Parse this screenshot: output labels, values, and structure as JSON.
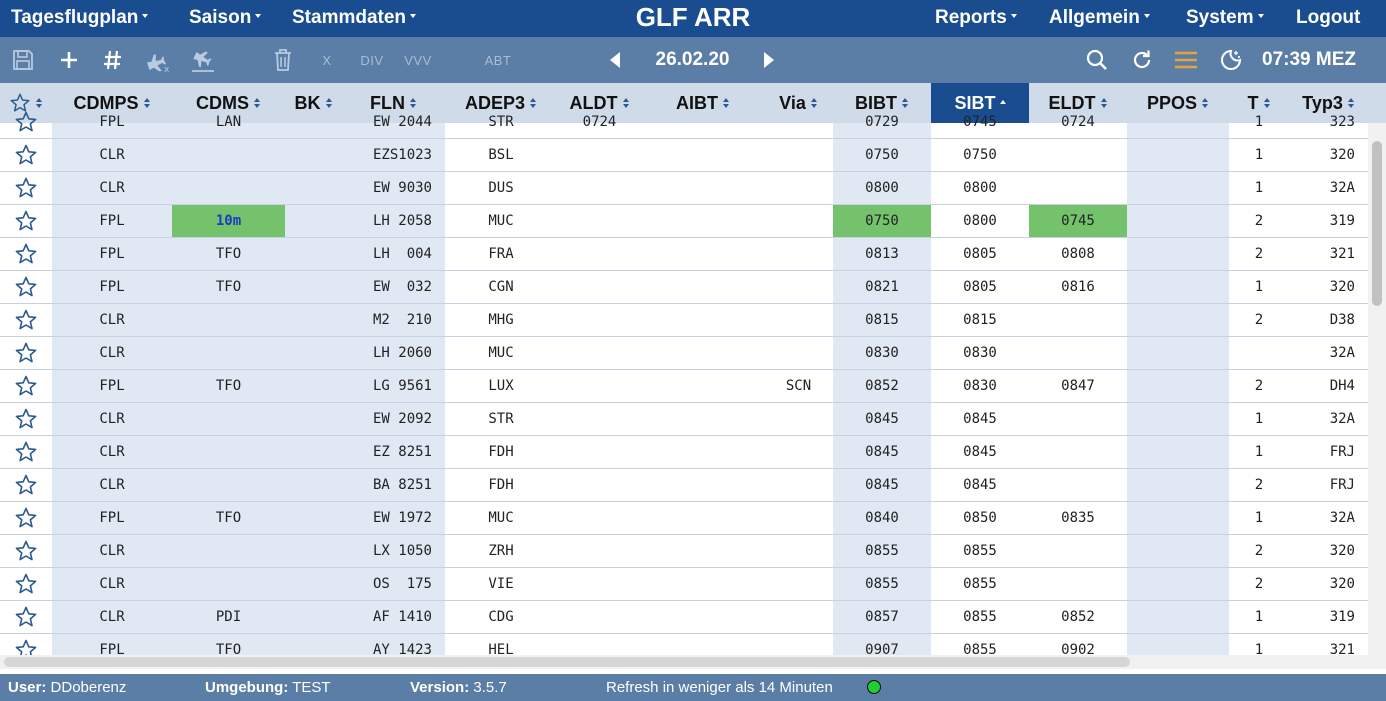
{
  "nav": {
    "left": [
      "Tagesflugplan",
      "Saison",
      "Stammdaten"
    ],
    "title": "GLF ARR",
    "right": [
      "Reports",
      "Allgemein",
      "System"
    ],
    "logout": "Logout"
  },
  "toolbar": {
    "save_icon": "save-icon",
    "add_icon": "plus-icon",
    "hash_icon": "hash-icon",
    "cancel_arrival_icon": "plane-cancel-icon",
    "arrival_icon": "plane-landing-icon",
    "delete_icon": "trash-icon",
    "x_label": "X",
    "div_label": "DIV",
    "vvv_label": "VVV",
    "abt_label": "ABT",
    "date": "26.02.20",
    "time": "07:39 MEZ",
    "accent": "#e6a23c"
  },
  "columns": [
    "CDMPS",
    "CDMS",
    "BK",
    "FLN",
    "ADEP3",
    "ALDT",
    "AIBT",
    "Via",
    "BIBT",
    "SIBT",
    "ELDT",
    "PPOS",
    "T",
    "Typ3"
  ],
  "active_sort_column": "SIBT",
  "rows": [
    {
      "cdmps": "FPL",
      "cdms": "LAN",
      "bk": "",
      "fln": "EW 2044",
      "adep3": "STR",
      "aldt": "0724",
      "aibt": "",
      "via": "",
      "bibt": "0729",
      "sibt": "0745",
      "eldt": "0724",
      "ppos": "",
      "t": "1",
      "typ3": "323"
    },
    {
      "cdmps": "CLR",
      "cdms": "",
      "bk": "",
      "fln": "EZS1023",
      "adep3": "BSL",
      "aldt": "",
      "aibt": "",
      "via": "",
      "bibt": "0750",
      "sibt": "0750",
      "eldt": "",
      "ppos": "",
      "t": "1",
      "typ3": "320"
    },
    {
      "cdmps": "CLR",
      "cdms": "",
      "bk": "",
      "fln": "EW 9030",
      "adep3": "DUS",
      "aldt": "",
      "aibt": "",
      "via": "",
      "bibt": "0800",
      "sibt": "0800",
      "eldt": "",
      "ppos": "",
      "t": "1",
      "typ3": "32A"
    },
    {
      "cdmps": "FPL",
      "cdms": "10m",
      "bk": "",
      "fln": "LH 2058",
      "adep3": "MUC",
      "aldt": "",
      "aibt": "",
      "via": "",
      "bibt": "0750",
      "sibt": "0800",
      "eldt": "0745",
      "ppos": "",
      "t": "2",
      "typ3": "319",
      "highlight": true
    },
    {
      "cdmps": "FPL",
      "cdms": "TFO",
      "bk": "",
      "fln": "LH  004",
      "adep3": "FRA",
      "aldt": "",
      "aibt": "",
      "via": "",
      "bibt": "0813",
      "sibt": "0805",
      "eldt": "0808",
      "ppos": "",
      "t": "2",
      "typ3": "321"
    },
    {
      "cdmps": "FPL",
      "cdms": "TFO",
      "bk": "",
      "fln": "EW  032",
      "adep3": "CGN",
      "aldt": "",
      "aibt": "",
      "via": "",
      "bibt": "0821",
      "sibt": "0805",
      "eldt": "0816",
      "ppos": "",
      "t": "1",
      "typ3": "320"
    },
    {
      "cdmps": "CLR",
      "cdms": "",
      "bk": "",
      "fln": "M2  210",
      "adep3": "MHG",
      "aldt": "",
      "aibt": "",
      "via": "",
      "bibt": "0815",
      "sibt": "0815",
      "eldt": "",
      "ppos": "",
      "t": "2",
      "typ3": "D38"
    },
    {
      "cdmps": "CLR",
      "cdms": "",
      "bk": "",
      "fln": "LH 2060",
      "adep3": "MUC",
      "aldt": "",
      "aibt": "",
      "via": "",
      "bibt": "0830",
      "sibt": "0830",
      "eldt": "",
      "ppos": "",
      "t": "",
      "typ3": "32A"
    },
    {
      "cdmps": "FPL",
      "cdms": "TFO",
      "bk": "",
      "fln": "LG 9561",
      "adep3": "LUX",
      "aldt": "",
      "aibt": "",
      "via": "SCN",
      "bibt": "0852",
      "sibt": "0830",
      "eldt": "0847",
      "ppos": "",
      "t": "2",
      "typ3": "DH4"
    },
    {
      "cdmps": "CLR",
      "cdms": "",
      "bk": "",
      "fln": "EW 2092",
      "adep3": "STR",
      "aldt": "",
      "aibt": "",
      "via": "",
      "bibt": "0845",
      "sibt": "0845",
      "eldt": "",
      "ppos": "",
      "t": "1",
      "typ3": "32A"
    },
    {
      "cdmps": "CLR",
      "cdms": "",
      "bk": "",
      "fln": "EZ 8251",
      "adep3": "FDH",
      "aldt": "",
      "aibt": "",
      "via": "",
      "bibt": "0845",
      "sibt": "0845",
      "eldt": "",
      "ppos": "",
      "t": "1",
      "typ3": "FRJ"
    },
    {
      "cdmps": "CLR",
      "cdms": "",
      "bk": "",
      "fln": "BA 8251",
      "adep3": "FDH",
      "aldt": "",
      "aibt": "",
      "via": "",
      "bibt": "0845",
      "sibt": "0845",
      "eldt": "",
      "ppos": "",
      "t": "2",
      "typ3": "FRJ"
    },
    {
      "cdmps": "FPL",
      "cdms": "TFO",
      "bk": "",
      "fln": "EW 1972",
      "adep3": "MUC",
      "aldt": "",
      "aibt": "",
      "via": "",
      "bibt": "0840",
      "sibt": "0850",
      "eldt": "0835",
      "ppos": "",
      "t": "1",
      "typ3": "32A"
    },
    {
      "cdmps": "CLR",
      "cdms": "",
      "bk": "",
      "fln": "LX 1050",
      "adep3": "ZRH",
      "aldt": "",
      "aibt": "",
      "via": "",
      "bibt": "0855",
      "sibt": "0855",
      "eldt": "",
      "ppos": "",
      "t": "2",
      "typ3": "320"
    },
    {
      "cdmps": "CLR",
      "cdms": "",
      "bk": "",
      "fln": "OS  175",
      "adep3": "VIE",
      "aldt": "",
      "aibt": "",
      "via": "",
      "bibt": "0855",
      "sibt": "0855",
      "eldt": "",
      "ppos": "",
      "t": "2",
      "typ3": "320"
    },
    {
      "cdmps": "CLR",
      "cdms": "PDI",
      "bk": "",
      "fln": "AF 1410",
      "adep3": "CDG",
      "aldt": "",
      "aibt": "",
      "via": "",
      "bibt": "0857",
      "sibt": "0855",
      "eldt": "0852",
      "ppos": "",
      "t": "1",
      "typ3": "319"
    },
    {
      "cdmps": "FPL",
      "cdms": "TFO",
      "bk": "",
      "fln": "AY 1423",
      "adep3": "HEL",
      "aldt": "",
      "aibt": "",
      "via": "",
      "bibt": "0907",
      "sibt": "0855",
      "eldt": "0902",
      "ppos": "",
      "t": "1",
      "typ3": "321"
    }
  ],
  "footer": {
    "user_label": "User:",
    "user_value": "DDoberenz",
    "env_label": "Umgebung:",
    "env_value": "TEST",
    "version_label": "Version:",
    "version_value": "3.5.7",
    "refresh": "Refresh in weniger als 14 Minuten",
    "status_color": "#22cc33"
  },
  "colors": {
    "nav_bg": "#1a4d8f",
    "toolbar_bg": "#5b7ea6",
    "header_bg": "#cfdbe9",
    "shade_col": "#dfe8f3",
    "highlight_green": "#74c36c"
  }
}
